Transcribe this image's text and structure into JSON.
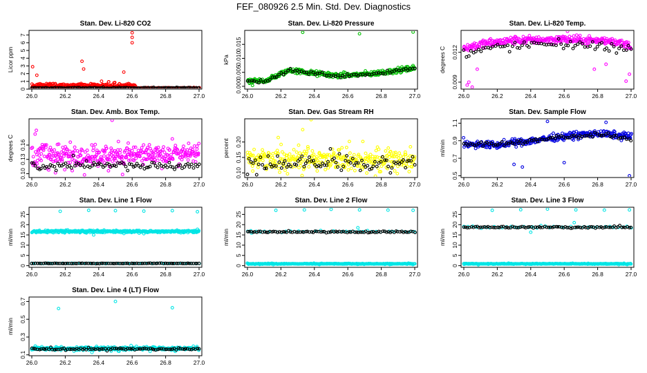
{
  "page_title": "FEF_080926  2.5 Min. Std. Dev. Diagnostics",
  "chart_data": [
    {
      "type": "scatter",
      "title": "Stan. Dev. Li-820 CO2",
      "ylabel": "Licor ppm",
      "xlim": [
        26.0,
        27.0
      ],
      "ylim": [
        0,
        7.6
      ],
      "xticks": [
        "26.0",
        "26.2",
        "26.4",
        "26.6",
        "26.8",
        "27.0"
      ],
      "yticks": [
        {
          "v": 0,
          "label": "0"
        },
        {
          "v": 1,
          "label": "1"
        },
        {
          "v": 2,
          "label": "2"
        },
        {
          "v": 3,
          "label": "3"
        },
        {
          "v": 4,
          "label": "4"
        },
        {
          "v": 5,
          "label": "5"
        },
        {
          "v": 6,
          "label": "6"
        },
        {
          "v": 7,
          "label": "7"
        }
      ],
      "series": [
        {
          "color": "#ff0000",
          "pattern": "band",
          "base": 0.45,
          "spread": 0.4,
          "n": 260,
          "xmax": 26.62,
          "outliers": [
            [
              26.005,
              2.9
            ],
            [
              26.03,
              1.8
            ],
            [
              26.3,
              3.6
            ],
            [
              26.31,
              2.6
            ],
            [
              26.6,
              7.3
            ],
            [
              26.6,
              6.7
            ],
            [
              26.6,
              6.0
            ],
            [
              26.55,
              2.2
            ]
          ]
        },
        {
          "color": "#ff0000",
          "pattern": "band",
          "base": 0.15,
          "spread": 0.08,
          "n": 60,
          "xmin": 26.62
        },
        {
          "color": "#000000",
          "pattern": "band",
          "base": 0.15,
          "spread": 0.08,
          "n": 130
        }
      ]
    },
    {
      "type": "scatter",
      "title": "Stan. Dev. Li-820 Pressure",
      "ylabel": "kPa",
      "xlim": [
        26.0,
        27.0
      ],
      "ylim": [
        -0.001,
        0.02
      ],
      "xticks": [
        "26.0",
        "26.2",
        "26.4",
        "26.6",
        "26.8",
        "27.0"
      ],
      "yticks": [
        {
          "v": 0.0,
          "label": "0.000"
        },
        {
          "v": 0.005,
          "label": "0.005"
        },
        {
          "v": 0.01,
          "label": "0.010"
        },
        {
          "v": 0.015,
          "label": "0.015"
        }
      ],
      "series": [
        {
          "color": "#00c000",
          "pattern": "trend",
          "trend": [
            [
              26.0,
              0.0015
            ],
            [
              26.12,
              0.0022
            ],
            [
              26.25,
              0.0058
            ],
            [
              26.4,
              0.0046
            ],
            [
              26.55,
              0.0038
            ],
            [
              26.75,
              0.0045
            ],
            [
              27.0,
              0.0065
            ]
          ],
          "spread": 0.0014,
          "n": 340,
          "outliers": [
            [
              26.33,
              0.0193
            ],
            [
              26.67,
              0.0188
            ],
            [
              26.99,
              0.0194
            ],
            [
              26.03,
              0.0003
            ]
          ]
        },
        {
          "color": "#000000",
          "pattern": "trend",
          "trend": [
            [
              26.0,
              0.0015
            ],
            [
              26.12,
              0.0022
            ],
            [
              26.25,
              0.0058
            ],
            [
              26.4,
              0.0046
            ],
            [
              26.55,
              0.0038
            ],
            [
              26.75,
              0.0045
            ],
            [
              27.0,
              0.0065
            ]
          ],
          "spread": 0.0011,
          "n": 75
        }
      ]
    },
    {
      "type": "scatter",
      "title": "Stan. Dev. Li-820 Temp.",
      "ylabel": "degrees C",
      "xlim": [
        26.0,
        27.0
      ],
      "ylim": [
        0.0083,
        0.0142
      ],
      "xticks": [
        "26.0",
        "26.2",
        "26.4",
        "26.6",
        "26.8",
        "27.0"
      ],
      "yticks": [
        {
          "v": 0.009,
          "label": "0.009"
        },
        {
          "v": 0.012,
          "label": "0.012"
        }
      ],
      "series": [
        {
          "color": "#ff00ff",
          "pattern": "trend",
          "trend": [
            [
              26.0,
              0.0124
            ],
            [
              26.1,
              0.0128
            ],
            [
              26.3,
              0.0132
            ],
            [
              26.6,
              0.0133
            ],
            [
              26.9,
              0.0131
            ],
            [
              27.0,
              0.0126
            ]
          ],
          "spread": 0.0006,
          "n": 330,
          "outliers": [
            [
              26.02,
              0.0087
            ],
            [
              26.03,
              0.009
            ],
            [
              26.05,
              0.0085
            ],
            [
              26.08,
              0.0103
            ],
            [
              26.97,
              0.0091
            ],
            [
              26.99,
              0.0098
            ],
            [
              26.78,
              0.0103
            ],
            [
              26.85,
              0.0108
            ],
            [
              26.62,
              0.0141
            ]
          ]
        },
        {
          "color": "#000000",
          "pattern": "trend",
          "trend": [
            [
              26.0,
              0.0118
            ],
            [
              26.2,
              0.0125
            ],
            [
              26.5,
              0.0128
            ],
            [
              26.8,
              0.0127
            ],
            [
              27.0,
              0.0122
            ]
          ],
          "spread": 0.0007,
          "n": 70
        }
      ]
    },
    {
      "type": "scatter",
      "title": "Stan. Dev. Amb. Box Temp.",
      "ylabel": "degrees C",
      "xlim": [
        26.0,
        27.0
      ],
      "ylim": [
        0.092,
        0.215
      ],
      "xticks": [
        "26.0",
        "26.2",
        "26.4",
        "26.6",
        "26.8",
        "27.0"
      ],
      "yticks": [
        {
          "v": 0.1,
          "label": "0.10"
        },
        {
          "v": 0.13,
          "label": "0.13"
        },
        {
          "v": 0.16,
          "label": "0.16"
        }
      ],
      "series": [
        {
          "color": "#ff00ff",
          "pattern": "band",
          "base": 0.14,
          "spread": 0.03,
          "n": 380,
          "outliers": [
            [
              26.48,
              0.212
            ],
            [
              26.02,
              0.183
            ]
          ]
        },
        {
          "color": "#000000",
          "pattern": "band",
          "base": 0.118,
          "spread": 0.011,
          "n": 90
        }
      ]
    },
    {
      "type": "scatter",
      "title": "Stan. Dev. Gas Stream RH",
      "ylabel": "percent",
      "xlim": [
        26.0,
        27.0
      ],
      "ylim": [
        0.085,
        0.275
      ],
      "xticks": [
        "26.0",
        "26.2",
        "26.4",
        "26.6",
        "26.8",
        "27.0"
      ],
      "yticks": [
        {
          "v": 0.1,
          "label": "0.10"
        },
        {
          "v": 0.15,
          "label": "0.15"
        },
        {
          "v": 0.2,
          "label": "0.20"
        }
      ],
      "series": [
        {
          "color": "#ffff00",
          "pattern": "band",
          "base": 0.145,
          "spread": 0.05,
          "n": 340,
          "outliers": [
            [
              26.38,
              0.272
            ],
            [
              26.33,
              0.24
            ]
          ]
        },
        {
          "color": "#000000",
          "pattern": "band",
          "base": 0.13,
          "spread": 0.04,
          "n": 90
        }
      ]
    },
    {
      "type": "scatter",
      "title": "Stan. Dev. Sample Flow",
      "ylabel": "ml/min",
      "xlim": [
        26.0,
        27.0
      ],
      "ylim": [
        0.48,
        1.15
      ],
      "xticks": [
        "26.0",
        "26.2",
        "26.4",
        "26.6",
        "26.8",
        "27.0"
      ],
      "yticks": [
        {
          "v": 0.5,
          "label": "0.5"
        },
        {
          "v": 0.7,
          "label": "0.7"
        },
        {
          "v": 0.9,
          "label": "0.9"
        },
        {
          "v": 1.1,
          "label": "1.1"
        }
      ],
      "series": [
        {
          "color": "#0000e0",
          "pattern": "trend",
          "trend": [
            [
              26.0,
              0.86
            ],
            [
              26.2,
              0.85
            ],
            [
              26.4,
              0.9
            ],
            [
              26.6,
              0.95
            ],
            [
              26.8,
              0.98
            ],
            [
              27.0,
              0.95
            ]
          ],
          "spread": 0.06,
          "n": 340,
          "outliers": [
            [
              26.3,
              0.63
            ],
            [
              26.35,
              0.6
            ],
            [
              26.6,
              0.65
            ],
            [
              26.99,
              0.5
            ],
            [
              26.5,
              1.12
            ],
            [
              26.85,
              1.11
            ]
          ]
        },
        {
          "color": "#000000",
          "pattern": "trend",
          "trend": [
            [
              26.0,
              0.86
            ],
            [
              26.2,
              0.86
            ],
            [
              26.4,
              0.9
            ],
            [
              26.6,
              0.94
            ],
            [
              26.8,
              0.97
            ],
            [
              27.0,
              0.92
            ]
          ],
          "spread": 0.04,
          "n": 80
        }
      ]
    },
    {
      "type": "scatter",
      "title": "Stan. Dev. Line 1 Flow",
      "ylabel": "ml/min",
      "xlim": [
        26.0,
        27.0
      ],
      "ylim": [
        -0.8,
        28.5
      ],
      "xticks": [
        "26.0",
        "26.2",
        "26.4",
        "26.6",
        "26.8",
        "27.0"
      ],
      "yticks": [
        {
          "v": 0,
          "label": "0"
        },
        {
          "v": 5,
          "label": "5"
        },
        {
          "v": 10,
          "label": "10"
        },
        {
          "v": 15,
          "label": "15"
        },
        {
          "v": 20,
          "label": "20"
        },
        {
          "v": 25,
          "label": "25"
        }
      ],
      "series": [
        {
          "color": "#00e5e5",
          "pattern": "band",
          "base": 16.7,
          "spread": 0.7,
          "n": 360,
          "outliers": [
            [
              26.17,
              26.5
            ],
            [
              26.34,
              27.0
            ],
            [
              26.5,
              26.8
            ],
            [
              26.67,
              26.6
            ],
            [
              26.84,
              26.8
            ],
            [
              26.99,
              26.3
            ],
            [
              26.37,
              15.0
            ],
            [
              26.67,
              15.6
            ]
          ]
        },
        {
          "color": "#00e5e5",
          "pattern": "band",
          "base": 1.1,
          "spread": 0.12,
          "n": 60
        },
        {
          "color": "#000000",
          "pattern": "band",
          "base": 1.1,
          "spread": 0.12,
          "n": 90
        }
      ]
    },
    {
      "type": "scatter",
      "title": "Stan. Dev. Line 2 Flow",
      "ylabel": "ml/min",
      "xlim": [
        26.0,
        27.0
      ],
      "ylim": [
        -0.8,
        28.5
      ],
      "xticks": [
        "26.0",
        "26.2",
        "26.4",
        "26.6",
        "26.8",
        "27.0"
      ],
      "yticks": [
        {
          "v": 0,
          "label": "0"
        },
        {
          "v": 5,
          "label": "5"
        },
        {
          "v": 10,
          "label": "10"
        },
        {
          "v": 15,
          "label": "15"
        },
        {
          "v": 20,
          "label": "20"
        },
        {
          "v": 25,
          "label": "25"
        }
      ],
      "series": [
        {
          "color": "#00e5e5",
          "pattern": "band",
          "base": 0.9,
          "spread": 0.25,
          "n": 360,
          "outliers": [
            [
              26.17,
              27.0
            ],
            [
              26.34,
              27.2
            ],
            [
              26.5,
              27.5
            ],
            [
              26.67,
              27.2
            ],
            [
              26.84,
              27.1
            ],
            [
              26.99,
              27.0
            ],
            [
              26.66,
              18.5
            ],
            [
              26.02,
              17.0
            ]
          ]
        },
        {
          "color": "#00e5e5",
          "pattern": "band",
          "base": 16.6,
          "spread": 0.6,
          "n": 40
        },
        {
          "color": "#000000",
          "pattern": "band",
          "base": 16.5,
          "spread": 0.5,
          "n": 90
        }
      ]
    },
    {
      "type": "scatter",
      "title": "Stan. Dev. Line 3 Flow",
      "ylabel": "ml/min",
      "xlim": [
        26.0,
        27.0
      ],
      "ylim": [
        -0.8,
        28.5
      ],
      "xticks": [
        "26.0",
        "26.2",
        "26.4",
        "26.6",
        "26.8",
        "27.0"
      ],
      "yticks": [
        {
          "v": 0,
          "label": "0"
        },
        {
          "v": 5,
          "label": "5"
        },
        {
          "v": 10,
          "label": "10"
        },
        {
          "v": 15,
          "label": "15"
        },
        {
          "v": 20,
          "label": "20"
        },
        {
          "v": 25,
          "label": "25"
        }
      ],
      "series": [
        {
          "color": "#00e5e5",
          "pattern": "band",
          "base": 0.9,
          "spread": 0.25,
          "n": 360,
          "outliers": [
            [
              26.17,
              27.0
            ],
            [
              26.34,
              27.3
            ],
            [
              26.5,
              27.6
            ],
            [
              26.67,
              27.2
            ],
            [
              26.84,
              27.1
            ],
            [
              26.99,
              27.2
            ],
            [
              26.4,
              16.3
            ],
            [
              26.66,
              21.0
            ]
          ]
        },
        {
          "color": "#00e5e5",
          "pattern": "band",
          "base": 18.8,
          "spread": 0.8,
          "n": 40
        },
        {
          "color": "#000000",
          "pattern": "band",
          "base": 18.7,
          "spread": 0.6,
          "n": 90
        }
      ]
    },
    {
      "type": "scatter",
      "title": "Stan. Dev. Line 4 (LT) Flow",
      "ylabel": "ml/min",
      "xlim": [
        26.0,
        27.0
      ],
      "ylim": [
        0.09,
        0.75
      ],
      "xticks": [
        "26.0",
        "26.2",
        "26.4",
        "26.6",
        "26.8",
        "27.0"
      ],
      "yticks": [
        {
          "v": 0.1,
          "label": "0.1"
        },
        {
          "v": 0.3,
          "label": "0.3"
        },
        {
          "v": 0.5,
          "label": "0.5"
        },
        {
          "v": 0.7,
          "label": "0.7"
        }
      ],
      "series": [
        {
          "color": "#00e5e5",
          "pattern": "band",
          "base": 0.17,
          "spread": 0.025,
          "n": 360,
          "outliers": [
            [
              26.16,
              0.62
            ],
            [
              26.5,
              0.7
            ],
            [
              26.84,
              0.63
            ]
          ]
        },
        {
          "color": "#000000",
          "pattern": "band",
          "base": 0.165,
          "spread": 0.015,
          "n": 90
        }
      ]
    }
  ]
}
